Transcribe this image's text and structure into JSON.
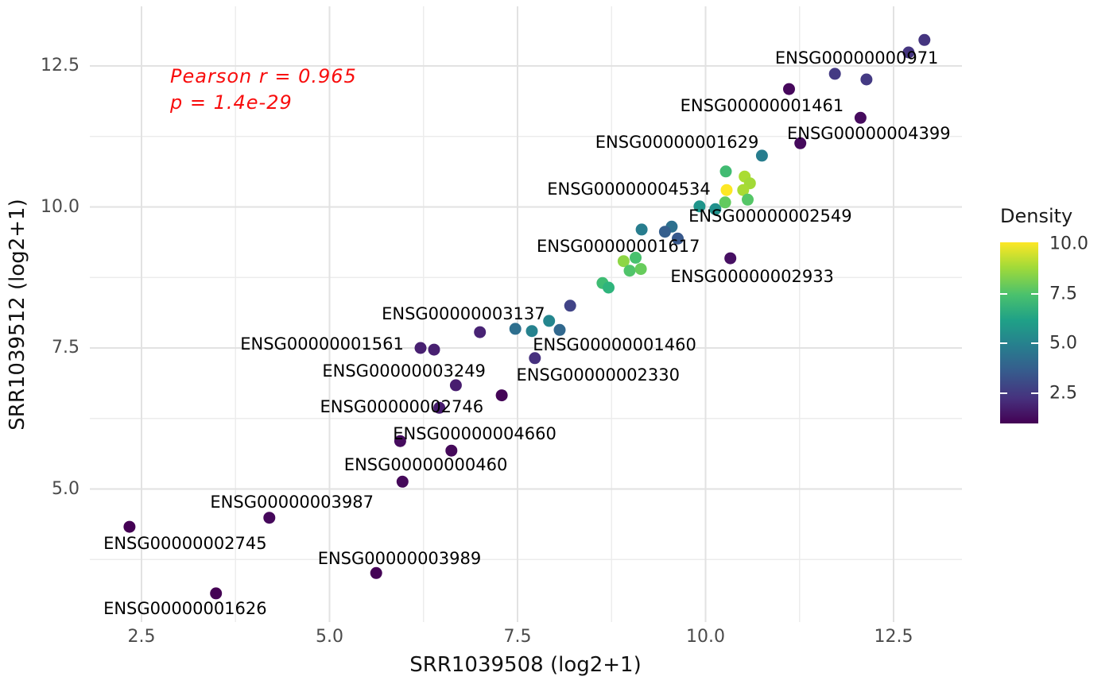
{
  "chart_data": {
    "type": "scatter",
    "xlabel": "SRR1039508 (log2+1)",
    "ylabel": "SRR1039512 (log2+1)",
    "xlim": [
      1.81,
      13.41
    ],
    "ylim": [
      2.63,
      13.56
    ],
    "grid": true,
    "x_ticks": [
      "2.5",
      "5.0",
      "7.5",
      "10.0",
      "12.5"
    ],
    "y_ticks": [
      "5.0",
      "7.5",
      "10.0",
      "12.5"
    ],
    "x_minor_ticks": [
      3.75,
      6.25,
      8.75,
      11.25
    ],
    "y_minor_ticks": [
      3.75,
      6.25,
      8.75,
      11.25
    ],
    "annotation": {
      "line1": "Pearson r = 0.965",
      "line2": "p = 1.4e-29",
      "color": "#f80d0d"
    },
    "color_scale": {
      "label": "Density",
      "palette": "viridis",
      "range": [
        1.0,
        10.1
      ],
      "ticks": [
        "10.0",
        "7.5",
        "5.0",
        "2.5"
      ]
    },
    "points": [
      {
        "x": 12.91,
        "y": 12.96,
        "density": 2.3,
        "color": "#453580"
      },
      {
        "x": 12.7,
        "y": 12.74,
        "density": 2.3,
        "color": "#453580"
      },
      {
        "x": 11.72,
        "y": 12.36,
        "density": 2.5,
        "color": "#443a83"
      },
      {
        "x": 12.14,
        "y": 12.26,
        "density": 2.5,
        "color": "#443a83"
      },
      {
        "x": 11.11,
        "y": 12.09,
        "density": 1.2,
        "color": "#46085c"
      },
      {
        "x": 12.06,
        "y": 11.58,
        "density": 1.2,
        "color": "#460b5e"
      },
      {
        "x": 11.26,
        "y": 11.13,
        "density": 1.2,
        "color": "#450a5c"
      },
      {
        "x": 10.75,
        "y": 10.91,
        "density": 4.8,
        "color": "#277d8e"
      },
      {
        "x": 10.27,
        "y": 10.63,
        "density": 7.3,
        "color": "#41bb72"
      },
      {
        "x": 10.52,
        "y": 10.54,
        "density": 8.9,
        "color": "#aadc32"
      },
      {
        "x": 10.59,
        "y": 10.42,
        "density": 8.8,
        "color": "#a2da37"
      },
      {
        "x": 10.5,
        "y": 10.3,
        "density": 8.8,
        "color": "#a8db34"
      },
      {
        "x": 10.28,
        "y": 10.3,
        "density": 10.0,
        "color": "#fde725"
      },
      {
        "x": 10.26,
        "y": 10.08,
        "density": 7.9,
        "color": "#62ca5f"
      },
      {
        "x": 10.56,
        "y": 10.13,
        "density": 7.6,
        "color": "#55c667"
      },
      {
        "x": 9.92,
        "y": 10.01,
        "density": 5.6,
        "color": "#1f958b"
      },
      {
        "x": 10.13,
        "y": 9.96,
        "density": 5.5,
        "color": "#21918c"
      },
      {
        "x": 9.15,
        "y": 9.6,
        "density": 4.8,
        "color": "#287d8e"
      },
      {
        "x": 9.55,
        "y": 9.65,
        "density": 4.4,
        "color": "#2d708e"
      },
      {
        "x": 9.46,
        "y": 9.56,
        "density": 3.8,
        "color": "#355f8d"
      },
      {
        "x": 9.63,
        "y": 9.44,
        "density": 3.6,
        "color": "#38598c"
      },
      {
        "x": 10.33,
        "y": 9.09,
        "density": 1.3,
        "color": "#471063"
      },
      {
        "x": 8.91,
        "y": 9.04,
        "density": 8.5,
        "color": "#8ed645"
      },
      {
        "x": 9.07,
        "y": 9.1,
        "density": 7.4,
        "color": "#48c16e"
      },
      {
        "x": 8.99,
        "y": 8.87,
        "density": 7.5,
        "color": "#50c46a"
      },
      {
        "x": 9.14,
        "y": 8.9,
        "density": 7.9,
        "color": "#67cc5c"
      },
      {
        "x": 8.63,
        "y": 8.65,
        "density": 7.2,
        "color": "#3fbc73"
      },
      {
        "x": 8.71,
        "y": 8.57,
        "density": 6.9,
        "color": "#2fb47c"
      },
      {
        "x": 8.2,
        "y": 8.25,
        "density": 2.7,
        "color": "#414487"
      },
      {
        "x": 7.92,
        "y": 7.98,
        "density": 5.0,
        "color": "#24868e"
      },
      {
        "x": 7.47,
        "y": 7.84,
        "density": 4.4,
        "color": "#2e6f8e"
      },
      {
        "x": 7.69,
        "y": 7.8,
        "density": 4.9,
        "color": "#26828e"
      },
      {
        "x": 8.06,
        "y": 7.82,
        "density": 4.1,
        "color": "#31688e"
      },
      {
        "x": 7.0,
        "y": 7.78,
        "density": 1.8,
        "color": "#482374"
      },
      {
        "x": 6.21,
        "y": 7.5,
        "density": 1.7,
        "color": "#482071"
      },
      {
        "x": 6.39,
        "y": 7.47,
        "density": 1.7,
        "color": "#482071"
      },
      {
        "x": 7.73,
        "y": 7.32,
        "density": 2.2,
        "color": "#46307e"
      },
      {
        "x": 6.68,
        "y": 6.84,
        "density": 1.6,
        "color": "#481d6f"
      },
      {
        "x": 7.29,
        "y": 6.66,
        "density": 1.1,
        "color": "#440557"
      },
      {
        "x": 6.46,
        "y": 6.44,
        "density": 1.6,
        "color": "#471c6e"
      },
      {
        "x": 5.94,
        "y": 5.85,
        "density": 1.2,
        "color": "#460c5e"
      },
      {
        "x": 6.62,
        "y": 5.68,
        "density": 1.1,
        "color": "#45095a"
      },
      {
        "x": 5.97,
        "y": 5.13,
        "density": 1.1,
        "color": "#45095a"
      },
      {
        "x": 4.2,
        "y": 4.49,
        "density": 1.1,
        "color": "#45085b"
      },
      {
        "x": 2.34,
        "y": 4.33,
        "density": 1.0,
        "color": "#440154"
      },
      {
        "x": 5.62,
        "y": 3.51,
        "density": 1.0,
        "color": "#440256"
      },
      {
        "x": 3.49,
        "y": 3.15,
        "density": 1.0,
        "color": "#440154"
      }
    ],
    "labels": [
      {
        "text": "ENSG00000000971",
        "x": 12.01,
        "y": 12.64
      },
      {
        "text": "ENSG00000001461",
        "x": 10.75,
        "y": 11.8
      },
      {
        "text": "ENSG00000004399",
        "x": 12.17,
        "y": 11.3
      },
      {
        "text": "ENSG00000001629",
        "x": 9.62,
        "y": 11.15
      },
      {
        "text": "ENSG00000004534",
        "x": 8.98,
        "y": 10.32
      },
      {
        "text": "ENSG00000002549",
        "x": 10.86,
        "y": 9.84
      },
      {
        "text": "ENSG00000001617",
        "x": 8.84,
        "y": 9.3
      },
      {
        "text": "ENSG00000002933",
        "x": 10.62,
        "y": 8.77
      },
      {
        "text": "ENSG00000003137",
        "x": 6.78,
        "y": 8.11
      },
      {
        "text": "ENSG00000001561",
        "x": 4.9,
        "y": 7.57
      },
      {
        "text": "ENSG00000001460",
        "x": 8.79,
        "y": 7.56
      },
      {
        "text": "ENSG00000003249",
        "x": 5.99,
        "y": 7.09
      },
      {
        "text": "ENSG00000002330",
        "x": 8.57,
        "y": 7.02
      },
      {
        "text": "ENSG00000002746",
        "x": 5.96,
        "y": 6.46
      },
      {
        "text": "ENSG00000004660",
        "x": 6.93,
        "y": 5.98
      },
      {
        "text": "ENSG00000000460",
        "x": 6.28,
        "y": 5.43
      },
      {
        "text": "ENSG00000003987",
        "x": 4.5,
        "y": 4.77
      },
      {
        "text": "ENSG00000002745",
        "x": 3.08,
        "y": 4.04
      },
      {
        "text": "ENSG00000003989",
        "x": 5.93,
        "y": 3.77
      },
      {
        "text": "ENSG00000001626",
        "x": 3.08,
        "y": 2.88
      }
    ]
  }
}
